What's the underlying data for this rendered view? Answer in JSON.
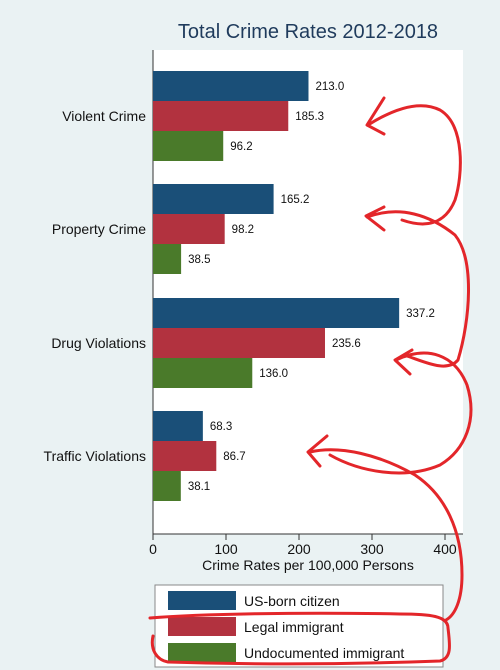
{
  "chart_data": {
    "type": "bar",
    "orientation": "horizontal",
    "title": "Total Crime Rates 2012-2018",
    "xlabel": "Crime Rates per 100,000 Persons",
    "ylabel": "",
    "xlim": [
      0,
      400
    ],
    "xticks": [
      "0",
      "100",
      "200",
      "300",
      "400"
    ],
    "categories": [
      "Violent Crime",
      "Property Crime",
      "Drug Violations",
      "Traffic Violations"
    ],
    "series": [
      {
        "name": "US-born citizen",
        "color": "#1a4f78",
        "values": [
          213.0,
          165.2,
          337.2,
          68.3
        ],
        "labels": [
          "213.0",
          "165.2",
          "337.2",
          "68.3"
        ]
      },
      {
        "name": "Legal immigrant",
        "color": "#b2323f",
        "values": [
          185.3,
          98.2,
          235.6,
          86.7
        ],
        "labels": [
          "185.3",
          "98.2",
          "235.6",
          "86.7"
        ]
      },
      {
        "name": "Undocumented immigrant",
        "color": "#4a7a2a",
        "values": [
          96.2,
          38.5,
          136.0,
          38.1
        ],
        "labels": [
          "96.2",
          "38.5",
          "136.0",
          "38.1"
        ]
      }
    ],
    "grid": false,
    "legend_position": "bottom"
  },
  "annotations": {
    "color": "#e3262a",
    "description": "hand-drawn red arrows and a circled legend"
  }
}
